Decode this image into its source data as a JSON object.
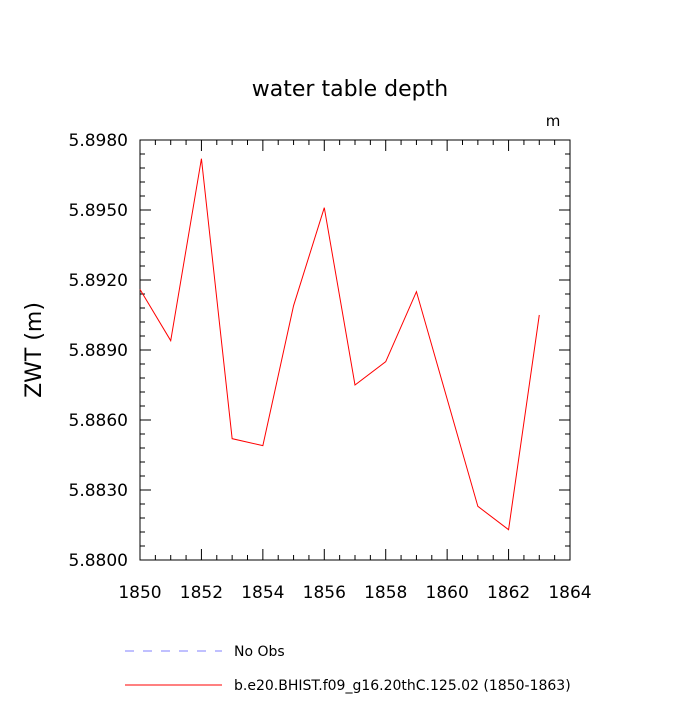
{
  "chart_data": {
    "type": "line",
    "title": "water table depth",
    "units_label": "m",
    "xlabel": "",
    "ylabel": "ZWT  (m)",
    "xlim": [
      1850,
      1864
    ],
    "ylim": [
      5.88,
      5.898
    ],
    "xticks": [
      "1850",
      "1852",
      "1854",
      "1856",
      "1858",
      "1860",
      "1862",
      "1864"
    ],
    "yticks": [
      "5.8980",
      "5.8950",
      "5.8920",
      "5.8890",
      "5.8860",
      "5.8830",
      "5.8800"
    ],
    "grid": false,
    "legend_position": "bottom",
    "series": [
      {
        "name": "b.e20.BHIST.f09_g16.20thC.125.02 (1850-1863)",
        "color": "#ff0000",
        "style": "solid",
        "x": [
          1850,
          1851,
          1852,
          1853,
          1854,
          1855,
          1856,
          1857,
          1858,
          1859,
          1860,
          1861,
          1862,
          1863
        ],
        "y": [
          5.8916,
          5.8894,
          5.8972,
          5.8852,
          5.8849,
          5.8909,
          5.8951,
          5.8875,
          5.8885,
          5.8915,
          5.8869,
          5.8823,
          5.8813,
          5.8905
        ]
      },
      {
        "name": "No Obs",
        "color": "#8080ff",
        "style": "dashed",
        "x": [],
        "y": []
      }
    ]
  }
}
